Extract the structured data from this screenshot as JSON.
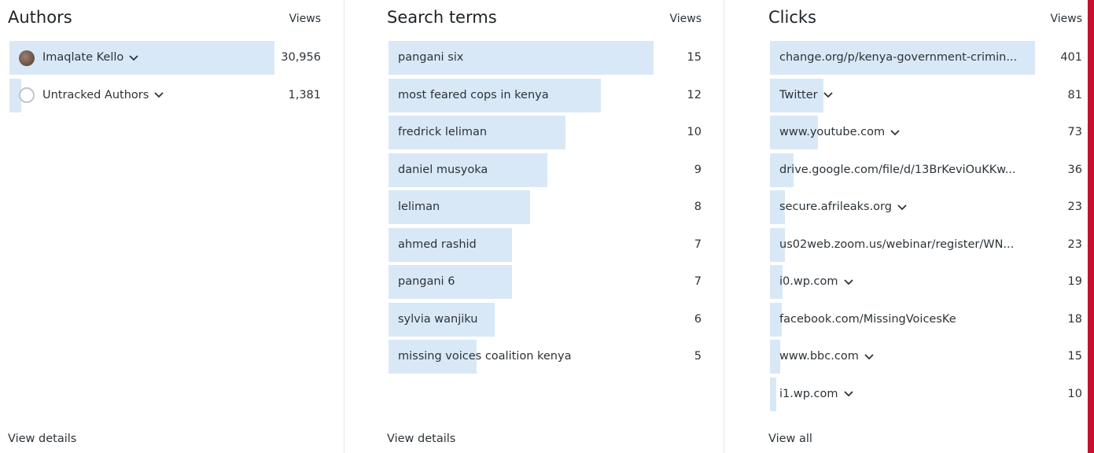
{
  "panels": [
    {
      "title": "Authors",
      "column": "Views",
      "footer": "View details",
      "items": [
        {
          "name": "Imaqlate Kello",
          "menu": true,
          "views": {
            "value": 30956,
            "label": "30,956"
          }
        },
        {
          "name": "Untracked Authors",
          "menu": true,
          "views": {
            "value": 1381,
            "label": "1,381"
          }
        }
      ]
    },
    {
      "title": "Search terms",
      "column": "Views",
      "footer": "View details",
      "items": [
        {
          "name": "pangani six",
          "menu": false,
          "views": 15
        },
        {
          "name": "most feared cops in kenya",
          "menu": false,
          "views": 12
        },
        {
          "name": "fredrick leliman",
          "menu": false,
          "views": 10
        },
        {
          "name": "daniel musyoka",
          "menu": false,
          "views": 9
        },
        {
          "name": "leliman",
          "menu": false,
          "views": 8
        },
        {
          "name": "ahmed rashid",
          "menu": false,
          "views": 7
        },
        {
          "name": "pangani 6",
          "menu": false,
          "views": 7
        },
        {
          "name": "sylvia wanjiku",
          "menu": false,
          "views": 6
        },
        {
          "name": "missing voices coalition kenya",
          "menu": false,
          "views": 5
        }
      ]
    },
    {
      "title": "Clicks",
      "column": "Views",
      "footer": "View all",
      "items": [
        {
          "name": "change.org/p/kenya-government-crimin...",
          "menu": false,
          "views": 401
        },
        {
          "name": "Twitter",
          "menu": true,
          "views": 81
        },
        {
          "name": "www.youtube.com",
          "menu": true,
          "views": 73
        },
        {
          "name": "drive.google.com/file/d/13BrKeviOuKKw...",
          "menu": false,
          "views": 36
        },
        {
          "name": "secure.afrileaks.org",
          "menu": true,
          "views": 23
        },
        {
          "name": "us02web.zoom.us/webinar/register/WN...",
          "menu": false,
          "views": 23
        },
        {
          "name": "i0.wp.com",
          "menu": true,
          "views": 19
        },
        {
          "name": "facebook.com/MissingVoicesKe",
          "menu": false,
          "views": 18
        },
        {
          "name": "www.bbc.com",
          "menu": true,
          "views": 15
        },
        {
          "name": "i1.wp.com",
          "menu": true,
          "views": 10
        }
      ]
    }
  ]
}
